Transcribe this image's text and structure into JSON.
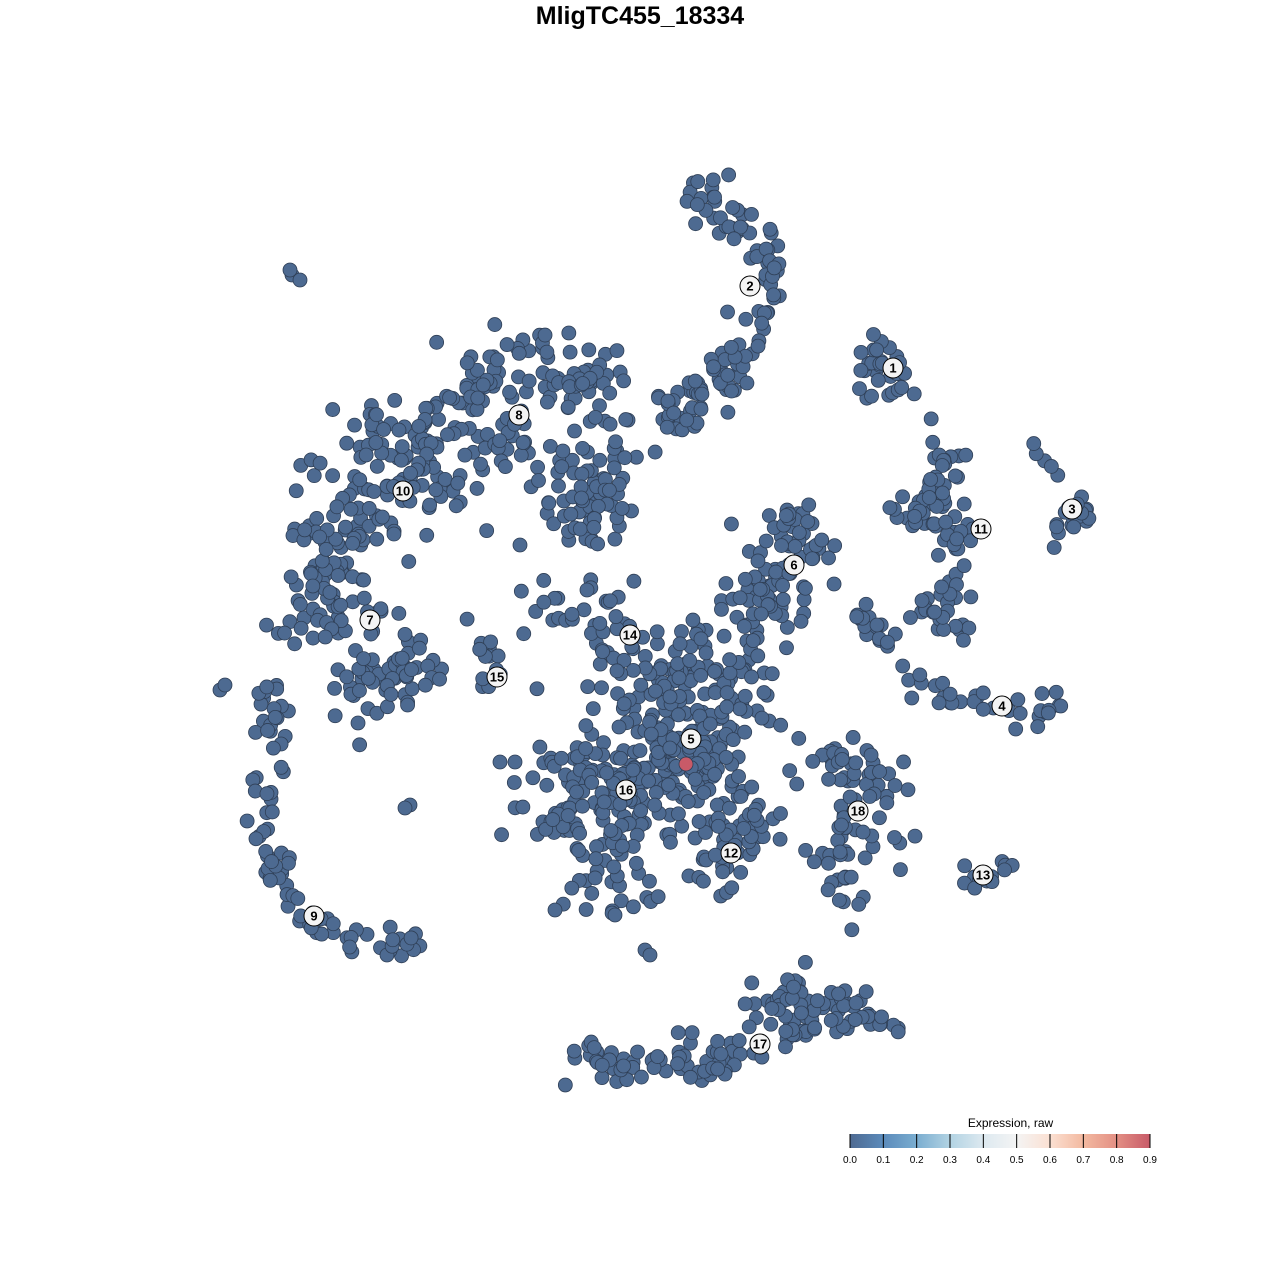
{
  "chart_data": {
    "type": "scatter",
    "title": "MligTC455_18334",
    "xlabel": "",
    "ylabel": "",
    "grid": false,
    "axes_visible": false,
    "point_color_default": "#4d6a91",
    "point_stroke": "#2f3f56",
    "legend": {
      "title": "Expression, raw",
      "placement": "bottom-right",
      "range": [
        0.0,
        0.9
      ],
      "ticks": [
        "0.0",
        "0.1",
        "0.2",
        "0.3",
        "0.4",
        "0.5",
        "0.6",
        "0.7",
        "0.8",
        "0.9"
      ],
      "colors": [
        "#4e6a92",
        "#5b8bbb",
        "#7aadd0",
        "#b2d3e3",
        "#dde9f0",
        "#f4f4f4",
        "#fbe0d2",
        "#f3b9a0",
        "#e38f84",
        "#c85a68"
      ]
    },
    "clusters": [
      {
        "label": "1",
        "center": [
          25.3,
          27.2
        ],
        "n": 30,
        "spread": 1.2,
        "path": [
          [
            24,
            30
          ],
          [
            23,
            27
          ],
          [
            26,
            26.5
          ],
          [
            25,
            24.5
          ]
        ]
      },
      {
        "label": "2",
        "center": [
          11,
          35.4
        ],
        "n": 120,
        "spread": 1.2,
        "path": [
          [
            5,
            44.5
          ],
          [
            8,
            43
          ],
          [
            12,
            40
          ],
          [
            13,
            35
          ],
          [
            10.5,
            30
          ],
          [
            7.5,
            26
          ],
          [
            5,
            23
          ],
          [
            2.5,
            22.5
          ]
        ]
      },
      {
        "label": "3",
        "center": [
          43.2,
          13.1
        ],
        "n": 25,
        "spread": 0.8,
        "path": [
          [
            39,
            19
          ],
          [
            41,
            17
          ],
          [
            42,
            14
          ],
          [
            45,
            12.5
          ],
          [
            41,
            10.5
          ]
        ]
      },
      {
        "label": "4",
        "center": [
          36.2,
          -6.6
        ],
        "n": 50,
        "spread": 0.8,
        "path": [
          [
            22,
            3
          ],
          [
            24.5,
            -1
          ],
          [
            29,
            -4.5
          ],
          [
            34,
            -6.5
          ],
          [
            39,
            -7.5
          ],
          [
            41.5,
            -6.8
          ]
        ]
      },
      {
        "label": "5",
        "center": [
          5.1,
          -9.9
        ],
        "n": 250,
        "spread": 3.2,
        "path": [
          [
            1,
            -4
          ],
          [
            6,
            -4
          ],
          [
            9,
            -8
          ],
          [
            5,
            -12
          ],
          [
            2,
            -10
          ],
          [
            6,
            -16
          ]
        ]
      },
      {
        "label": "6",
        "center": [
          15.4,
          7.5
        ],
        "n": 100,
        "spread": 1.4,
        "path": [
          [
            12,
            11
          ],
          [
            16,
            11
          ],
          [
            18,
            8
          ],
          [
            12,
            6
          ],
          [
            15,
            4
          ],
          [
            10,
            4
          ],
          [
            12,
            0
          ],
          [
            10,
            -4
          ]
        ]
      },
      {
        "label": "7",
        "center": [
          -27,
          2
        ],
        "n": 130,
        "spread": 1.8,
        "path": [
          [
            -34,
            8
          ],
          [
            -30,
            6
          ],
          [
            -26,
            4
          ],
          [
            -35,
            2
          ],
          [
            -24,
            -1
          ],
          [
            -23,
            -5
          ],
          [
            -27,
            -6
          ],
          [
            -29,
            -1
          ]
        ]
      },
      {
        "label": "8",
        "center": [
          -12.1,
          22.5
        ],
        "n": 200,
        "spread": 2.2,
        "path": [
          [
            -18,
            26
          ],
          [
            -12,
            27
          ],
          [
            -6,
            26.5
          ],
          [
            -4,
            22
          ],
          [
            -5,
            16
          ],
          [
            -5,
            12
          ],
          [
            -12,
            19
          ],
          [
            -17,
            22
          ]
        ]
      },
      {
        "label": "9",
        "center": [
          -32.6,
          -27.6
        ],
        "n": 90,
        "spread": 0.8,
        "path": [
          [
            -36.8,
            -4
          ],
          [
            -37,
            -10
          ],
          [
            -37.2,
            -16
          ],
          [
            -37,
            -22
          ],
          [
            -35,
            -26
          ],
          [
            -31,
            -29
          ],
          [
            -26,
            -31
          ],
          [
            -22,
            -29.5
          ]
        ]
      },
      {
        "label": "10",
        "center": [
          -23.7,
          14.9
        ],
        "n": 150,
        "spread": 2.0,
        "path": [
          [
            -31,
            16
          ],
          [
            -26,
            20
          ],
          [
            -21,
            21
          ],
          [
            -19,
            15
          ],
          [
            -24,
            14
          ],
          [
            -32,
            10
          ],
          [
            -28,
            12
          ]
        ]
      },
      {
        "label": "11",
        "center": [
          34.1,
          11.1
        ],
        "n": 90,
        "spread": 1.0,
        "path": [
          [
            30,
            20
          ],
          [
            31,
            17
          ],
          [
            30,
            14
          ],
          [
            26,
            13
          ],
          [
            32,
            11
          ],
          [
            32,
            7
          ],
          [
            30,
            4
          ],
          [
            28,
            2.5
          ],
          [
            35,
            1
          ]
        ]
      },
      {
        "label": "12",
        "center": [
          9.1,
          -21.3
        ],
        "n": 50,
        "spread": 1.4,
        "path": [
          [
            6,
            -18
          ],
          [
            10,
            -19
          ],
          [
            12,
            -18
          ],
          [
            8,
            -23
          ],
          [
            6,
            -24
          ]
        ]
      },
      {
        "label": "13",
        "center": [
          34.3,
          -23.5
        ],
        "n": 12,
        "spread": 0.6,
        "path": [
          [
            32,
            -23.8
          ],
          [
            35,
            -24
          ],
          [
            37,
            -22.2
          ]
        ]
      },
      {
        "label": "14",
        "center": [
          -1,
          0.5
        ],
        "n": 40,
        "spread": 1.2,
        "path": [
          [
            -11,
            2.8
          ],
          [
            -6,
            2.8
          ],
          [
            -3,
            4
          ],
          [
            -2,
            0
          ],
          [
            -3,
            -2
          ]
        ]
      },
      {
        "label": "15",
        "center": [
          -14.3,
          -3.7
        ],
        "n": 15,
        "spread": 0.6,
        "path": [
          [
            -17.5,
            1.5
          ],
          [
            -15,
            -1
          ],
          [
            -14.5,
            -3
          ],
          [
            -16,
            -6.5
          ]
        ]
      },
      {
        "label": "16",
        "center": [
          -1.4,
          -15
        ],
        "n": 140,
        "spread": 2.0,
        "path": [
          [
            -8,
            -12
          ],
          [
            -4,
            -12
          ],
          [
            -2,
            -16
          ],
          [
            -11,
            -18
          ],
          [
            -4,
            -19
          ],
          [
            -2,
            -23
          ],
          [
            -5,
            -26
          ]
        ]
      },
      {
        "label": "17",
        "center": [
          12,
          -40.4
        ],
        "n": 150,
        "spread": 1.2,
        "path": [
          [
            -6,
            -42.2
          ],
          [
            -2,
            -42.8
          ],
          [
            4,
            -41.8
          ],
          [
            8,
            -42
          ],
          [
            12,
            -40
          ],
          [
            18,
            -38
          ],
          [
            22,
            -36.5
          ],
          [
            25,
            -37.2
          ],
          [
            12,
            -36
          ],
          [
            18,
            -35
          ]
        ]
      },
      {
        "label": "18",
        "center": [
          21.8,
          -17.1
        ],
        "n": 80,
        "spread": 1.4,
        "path": [
          [
            17,
            -11
          ],
          [
            22,
            -12
          ],
          [
            24,
            -14
          ],
          [
            20,
            -17
          ],
          [
            21,
            -21
          ],
          [
            20,
            -25
          ],
          [
            26.5,
            -19
          ]
        ]
      }
    ],
    "outliers": [
      [
        -34.8,
        36.5
      ],
      [
        -34,
        36
      ],
      [
        -35,
        37
      ],
      [
        -42,
        -5
      ],
      [
        -41.5,
        -4.5
      ],
      [
        -23,
        -16.5
      ],
      [
        -23.5,
        -16.8
      ],
      [
        -12,
        9.5
      ],
      [
        -14,
        -12.2
      ],
      [
        -12.5,
        -12.2
      ],
      [
        0.5,
        -31
      ],
      [
        1,
        -31.5
      ],
      [
        -8.5,
        -27
      ],
      [
        -2.5,
        -27.5
      ]
    ],
    "highlighted_points": [
      {
        "x": 4.6,
        "y": -12.4,
        "value": 0.9
      }
    ]
  }
}
